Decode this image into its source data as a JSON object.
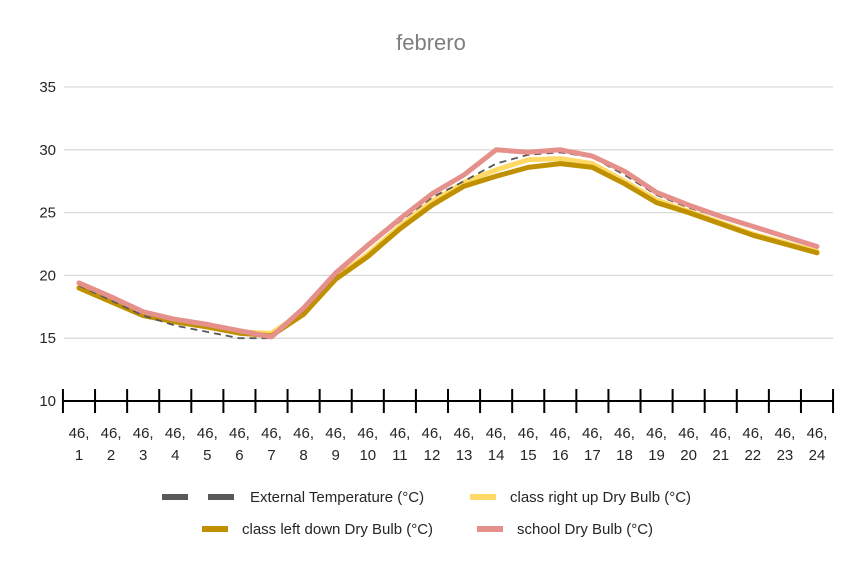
{
  "chart_data": {
    "type": "line",
    "title": "febrero",
    "xlabel": "",
    "ylabel": "",
    "categories": [
      "46, 1",
      "46, 2",
      "46, 3",
      "46, 4",
      "46, 5",
      "46, 6",
      "46, 7",
      "46, 8",
      "46, 9",
      "46, 10",
      "46, 11",
      "46, 12",
      "46, 13",
      "46, 14",
      "46, 15",
      "46, 16",
      "46, 17",
      "46, 18",
      "46, 19",
      "46, 20",
      "46, 21",
      "46, 22",
      "46, 23",
      "46, 24"
    ],
    "ylim": [
      10,
      35
    ],
    "yticks": [
      10,
      15,
      20,
      25,
      30,
      35
    ],
    "grid": true,
    "legend_position": "bottom",
    "series": [
      {
        "name": "External Temperature (°C)",
        "color": "#595959",
        "style": "dashed",
        "values": [
          19.2,
          18.0,
          16.8,
          16.0,
          15.5,
          15.0,
          15.0,
          17.2,
          20.0,
          22.3,
          24.3,
          26.2,
          27.5,
          28.9,
          29.6,
          29.8,
          29.4,
          28.0,
          26.4,
          25.4,
          24.6,
          23.8,
          23.0,
          22.2
        ]
      },
      {
        "name": "class right up Dry Bulb (°C)",
        "color": "#ffd966",
        "style": "solid",
        "values": [
          19.0,
          17.9,
          16.8,
          16.3,
          15.9,
          15.5,
          15.4,
          17.1,
          19.8,
          21.7,
          23.9,
          25.9,
          27.4,
          28.4,
          29.2,
          29.3,
          28.9,
          27.5,
          26.0,
          25.1,
          24.2,
          23.3,
          22.6,
          21.9
        ]
      },
      {
        "name": "class left down Dry Bulb (°C)",
        "color": "#bf9000",
        "style": "solid",
        "values": [
          19.0,
          17.9,
          16.8,
          16.3,
          15.9,
          15.4,
          15.2,
          16.9,
          19.7,
          21.5,
          23.7,
          25.6,
          27.1,
          27.9,
          28.6,
          28.9,
          28.6,
          27.3,
          25.8,
          25.0,
          24.1,
          23.2,
          22.5,
          21.8
        ]
      },
      {
        "name": "school Dry Bulb (°C)",
        "color": "#e6908c",
        "style": "solid",
        "values": [
          19.4,
          18.3,
          17.1,
          16.5,
          16.1,
          15.6,
          15.1,
          17.4,
          20.2,
          22.4,
          24.5,
          26.5,
          28.0,
          30.0,
          29.8,
          30.0,
          29.5,
          28.3,
          26.6,
          25.6,
          24.7,
          23.9,
          23.1,
          22.3
        ]
      }
    ]
  }
}
